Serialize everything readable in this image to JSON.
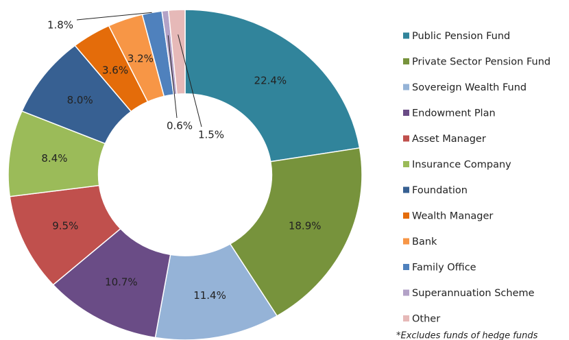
{
  "chart_data": {
    "type": "donut",
    "categories": [
      "Public Pension Fund",
      "Private Sector Pension Fund",
      "Sovereign Wealth Fund",
      "Endowment Plan",
      "Asset Manager",
      "Insurance Company",
      "Foundation",
      "Wealth Manager",
      "Bank",
      "Family Office",
      "Superannuation Scheme",
      "Other"
    ],
    "values": [
      22.4,
      18.9,
      11.4,
      10.7,
      9.5,
      8.4,
      8.0,
      3.6,
      3.2,
      1.8,
      0.6,
      1.5
    ],
    "value_labels": [
      "22.4%",
      "18.9%",
      "11.4%",
      "10.7%",
      "9.5%",
      "8.4%",
      "8.0%",
      "3.6%",
      "3.2%",
      "1.8%",
      "0.6%",
      "1.5%"
    ],
    "colors": [
      "#31849b",
      "#77933c",
      "#95b3d7",
      "#6a4c86",
      "#c0504d",
      "#9bbb59",
      "#376092",
      "#e46c0a",
      "#f79646",
      "#4f81bd",
      "#b3a2c7",
      "#e6b9b8"
    ],
    "legend": "right",
    "footnote": "*Excludes funds of hedge funds"
  }
}
